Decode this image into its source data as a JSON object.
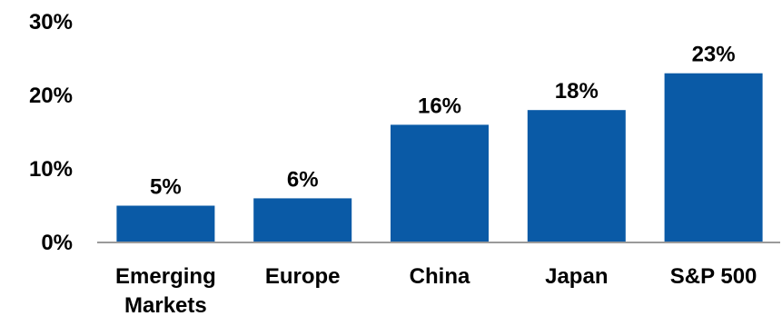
{
  "chart_data": {
    "type": "bar",
    "categories": [
      [
        "Emerging",
        "Markets"
      ],
      [
        "Europe"
      ],
      [
        "China"
      ],
      [
        "Japan"
      ],
      [
        "S&P 500"
      ]
    ],
    "values": [
      5,
      6,
      16,
      18,
      23
    ],
    "data_labels": [
      "5%",
      "6%",
      "16%",
      "18%",
      "23%"
    ],
    "yticks": [
      0,
      10,
      20,
      30
    ],
    "ytick_labels": [
      "0%",
      "10%",
      "20%",
      "30%"
    ],
    "ylim": [
      0,
      30
    ],
    "grid": false,
    "legend": "none",
    "bar_color": "#0A5AA6",
    "axis_color": "#9a9a9a"
  }
}
